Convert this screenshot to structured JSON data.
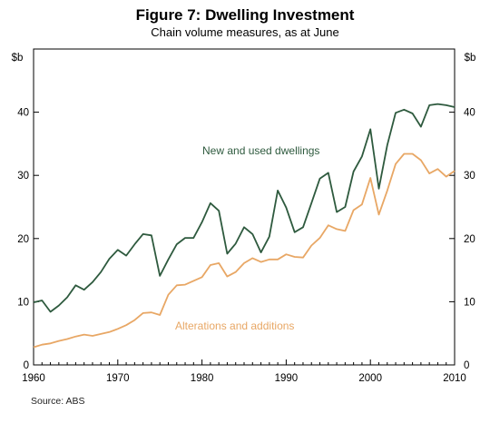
{
  "chart_data": {
    "type": "line",
    "title": "Figure 7: Dwelling Investment",
    "subtitle": "Chain volume measures, as at June",
    "ylabel_left": "$b",
    "ylabel_right": "$b",
    "source": "Source:  ABS",
    "xlim": [
      1960,
      2010
    ],
    "ylim": [
      0,
      50
    ],
    "x_ticks": [
      1960,
      1970,
      1980,
      1990,
      2000,
      2010
    ],
    "y_ticks": [
      0,
      10,
      20,
      30,
      40
    ],
    "grid": false,
    "x": [
      1960,
      1961,
      1962,
      1963,
      1964,
      1965,
      1966,
      1967,
      1968,
      1969,
      1970,
      1971,
      1972,
      1973,
      1974,
      1975,
      1976,
      1977,
      1978,
      1979,
      1980,
      1981,
      1982,
      1983,
      1984,
      1985,
      1986,
      1987,
      1988,
      1989,
      1990,
      1991,
      1992,
      1993,
      1994,
      1995,
      1996,
      1997,
      1998,
      1999,
      2000,
      2001,
      2002,
      2003,
      2004,
      2005,
      2006,
      2007,
      2008,
      2009,
      2010
    ],
    "series": [
      {
        "name": "New and used dwellings",
        "color": "#2e5a3e",
        "values": [
          9.9,
          10.2,
          8.4,
          9.4,
          10.7,
          12.6,
          11.9,
          13.1,
          14.7,
          16.8,
          18.2,
          17.3,
          19.1,
          20.7,
          20.5,
          14.1,
          16.7,
          19.1,
          20.1,
          20.1,
          22.6,
          25.6,
          24.4,
          17.6,
          19.2,
          21.8,
          20.7,
          17.8,
          20.3,
          27.6,
          24.9,
          21.0,
          21.8,
          25.6,
          29.5,
          30.4,
          24.2,
          25.0,
          30.6,
          33.0,
          37.3,
          27.9,
          34.8,
          39.9,
          40.4,
          39.8,
          37.7,
          41.1,
          41.3,
          41.1,
          40.8
        ]
      },
      {
        "name": "Alterations and additions",
        "color": "#e8a765",
        "values": [
          2.8,
          3.2,
          3.4,
          3.8,
          4.1,
          4.5,
          4.8,
          4.6,
          4.9,
          5.2,
          5.7,
          6.3,
          7.1,
          8.2,
          8.3,
          7.9,
          11.1,
          12.6,
          12.7,
          13.3,
          13.9,
          15.8,
          16.1,
          14.0,
          14.7,
          16.1,
          16.9,
          16.3,
          16.7,
          16.7,
          17.5,
          17.1,
          17.0,
          18.9,
          20.1,
          22.1,
          21.5,
          21.2,
          24.5,
          25.4,
          29.6,
          23.8,
          27.6,
          31.8,
          33.4,
          33.4,
          32.4,
          30.3,
          31.0,
          29.8,
          30.7
        ]
      }
    ]
  },
  "annotations": {
    "new_dwellings": "New and used dwellings",
    "alterations": "Alterations and additions"
  }
}
